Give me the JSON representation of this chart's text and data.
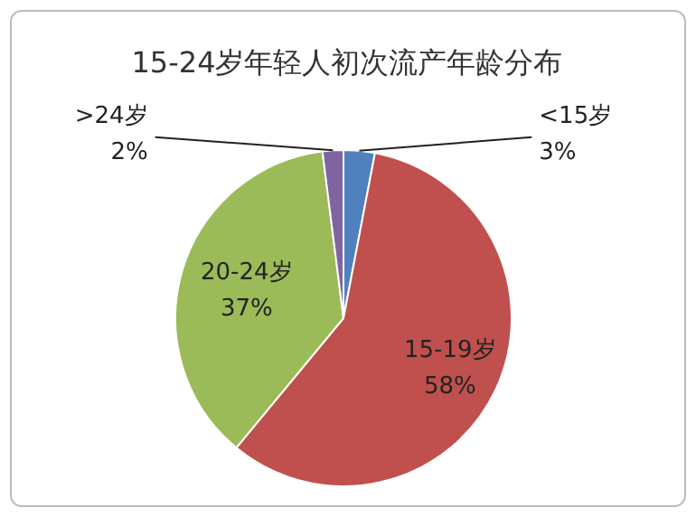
{
  "chart_data": {
    "type": "pie",
    "title": "15-24岁年轻人初次流产年龄分布",
    "categories": [
      "<15岁",
      "15-19岁",
      "20-24岁",
      ">24岁"
    ],
    "values": [
      3,
      58,
      37,
      2
    ],
    "colors": [
      "#4f81bd",
      "#c0504d",
      "#9bbb59",
      "#8064a2"
    ],
    "value_labels": [
      "3%",
      "58%",
      "37%",
      "2%"
    ]
  }
}
